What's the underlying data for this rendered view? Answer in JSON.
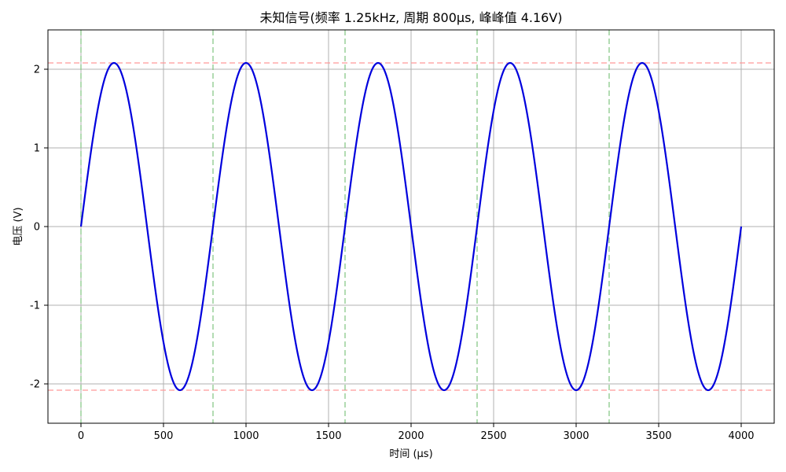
{
  "chart_data": {
    "type": "line",
    "title": "未知信号(频率 1.25kHz, 周期 800μs, 峰峰值 4.16V)",
    "xlabel": "时间 (μs)",
    "ylabel": "电压 (V)",
    "xlim": [
      -200,
      4200
    ],
    "ylim": [
      -2.5,
      2.5
    ],
    "grid": true,
    "x_ticks": [
      0,
      500,
      1000,
      1500,
      2000,
      2500,
      3000,
      3500,
      4000
    ],
    "x_tick_labels": [
      "0",
      "500",
      "1000",
      "1500",
      "2000",
      "2500",
      "3000",
      "3500",
      "4000"
    ],
    "y_ticks": [
      2,
      1,
      0,
      -1,
      -2
    ],
    "y_tick_labels": [
      "2",
      "1",
      "0",
      "-1",
      "-2"
    ],
    "series": [
      {
        "color": "#0000dd",
        "amplitude": 2.08,
        "frequency_khz": 1.25,
        "period_us": 800,
        "x_range": [
          0,
          4000
        ]
      }
    ],
    "reference_lines": {
      "horizontal": [
        {
          "y": 2.08,
          "color": "#ff9999",
          "style": "dashed"
        },
        {
          "y": -2.08,
          "color": "#ff9999",
          "style": "dashed"
        }
      ],
      "vertical": [
        {
          "x": 0,
          "color": "#88c888",
          "style": "dashed"
        },
        {
          "x": 800,
          "color": "#88c888",
          "style": "dashed"
        },
        {
          "x": 1600,
          "color": "#88c888",
          "style": "dashed"
        },
        {
          "x": 2400,
          "color": "#88c888",
          "style": "dashed"
        },
        {
          "x": 3200,
          "color": "#88c888",
          "style": "dashed"
        }
      ]
    }
  }
}
